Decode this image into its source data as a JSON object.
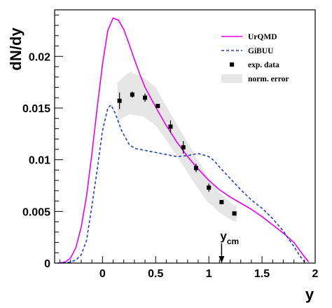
{
  "chart_data": {
    "type": "line",
    "xlabel": "y",
    "ylabel": "dN/dy",
    "xlim": [
      -0.45,
      2.0
    ],
    "ylim": [
      0,
      0.0245
    ],
    "x_ticks": [
      {
        "value": 0,
        "label": "0"
      },
      {
        "value": 0.5,
        "label": "0.5"
      },
      {
        "value": 1,
        "label": "1"
      },
      {
        "value": 1.5,
        "label": "1.5"
      },
      {
        "value": 2,
        "label": "2"
      }
    ],
    "y_ticks": [
      {
        "value": 0,
        "label": "0"
      },
      {
        "value": 0.005,
        "label": "0.005"
      },
      {
        "value": 0.01,
        "label": "0.01"
      },
      {
        "value": 0.015,
        "label": "0.015"
      },
      {
        "value": 0.02,
        "label": "0.02"
      }
    ],
    "legend": {
      "position": "top-right",
      "entries": [
        {
          "key": "urqmd",
          "label": "UrQMD"
        },
        {
          "key": "gibuu",
          "label": "GiBUU"
        },
        {
          "key": "exp",
          "label": "exp. data"
        },
        {
          "key": "band",
          "label": "norm. error"
        }
      ]
    },
    "annotation": {
      "label": "y",
      "sub": "cm",
      "x": 1.12
    },
    "colors": {
      "urqmd": "#e600e6",
      "gibuu": "#1f3fbf",
      "band": "#e6e6e6",
      "data": "#000000"
    },
    "series": [
      {
        "name": "UrQMD",
        "key": "urqmd",
        "style": "solid",
        "x": [
          -0.42,
          -0.35,
          -0.3,
          -0.25,
          -0.2,
          -0.15,
          -0.1,
          -0.05,
          0.0,
          0.05,
          0.1,
          0.15,
          0.2,
          0.25,
          0.3,
          0.35,
          0.4,
          0.5,
          0.6,
          0.7,
          0.75,
          0.8,
          0.9,
          1.0,
          1.1,
          1.2,
          1.3,
          1.4,
          1.5,
          1.6,
          1.7,
          1.8,
          1.85,
          1.9,
          1.94
        ],
        "y": [
          0.0,
          0.0001,
          0.0005,
          0.0015,
          0.0035,
          0.0065,
          0.0105,
          0.015,
          0.0192,
          0.0225,
          0.0237,
          0.0235,
          0.0226,
          0.0212,
          0.0197,
          0.0183,
          0.017,
          0.0151,
          0.0133,
          0.0117,
          0.011,
          0.0103,
          0.0091,
          0.008,
          0.0071,
          0.0064,
          0.0058,
          0.0052,
          0.0045,
          0.0037,
          0.0029,
          0.002,
          0.0013,
          0.0006,
          0.0001
        ]
      },
      {
        "name": "GiBUU",
        "key": "gibuu",
        "style": "dashed",
        "x": [
          -0.42,
          -0.3,
          -0.25,
          -0.2,
          -0.15,
          -0.1,
          -0.05,
          0.0,
          0.05,
          0.08,
          0.12,
          0.18,
          0.25,
          0.3,
          0.4,
          0.5,
          0.6,
          0.7,
          0.8,
          0.9,
          1.0,
          1.05,
          1.1,
          1.2,
          1.3,
          1.4,
          1.5,
          1.6,
          1.7,
          1.8,
          1.85,
          1.9
        ],
        "y": [
          0.0,
          0.0001,
          0.0003,
          0.0008,
          0.0022,
          0.0055,
          0.009,
          0.0128,
          0.015,
          0.0153,
          0.0145,
          0.0128,
          0.0115,
          0.0111,
          0.0109,
          0.0107,
          0.0105,
          0.0103,
          0.0104,
          0.0106,
          0.0103,
          0.0099,
          0.0093,
          0.0082,
          0.0071,
          0.0061,
          0.0053,
          0.0043,
          0.0031,
          0.0016,
          0.0008,
          0.0001
        ]
      }
    ],
    "exp_data": {
      "name": "exp. data",
      "points": [
        {
          "x": 0.16,
          "y": 0.0157,
          "err": 0.0008
        },
        {
          "x": 0.28,
          "y": 0.0163,
          "err": 0.0003
        },
        {
          "x": 0.4,
          "y": 0.016,
          "err": 0.0004
        },
        {
          "x": 0.52,
          "y": 0.0152,
          "err": 0.0002
        },
        {
          "x": 0.64,
          "y": 0.0132,
          "err": 0.0006
        },
        {
          "x": 0.76,
          "y": 0.0112,
          "err": 0.0006
        },
        {
          "x": 0.88,
          "y": 0.0092,
          "err": 0.0004
        },
        {
          "x": 1.0,
          "y": 0.0073,
          "err": 0.0004
        },
        {
          "x": 1.12,
          "y": 0.0059,
          "err": 0.0002
        },
        {
          "x": 1.24,
          "y": 0.0048,
          "err": 0.0002
        }
      ]
    },
    "band": {
      "name": "norm. error",
      "x": [
        0.14,
        0.26,
        0.38,
        0.5,
        0.62,
        0.74,
        0.86,
        0.98,
        1.1,
        1.22,
        1.26
      ],
      "upper": [
        0.0175,
        0.0185,
        0.018,
        0.017,
        0.0148,
        0.0127,
        0.0106,
        0.0085,
        0.0068,
        0.0057,
        0.0055
      ],
      "lower": [
        0.0138,
        0.0144,
        0.0142,
        0.0133,
        0.0116,
        0.0097,
        0.0078,
        0.006,
        0.0049,
        0.0041,
        0.004
      ]
    }
  }
}
